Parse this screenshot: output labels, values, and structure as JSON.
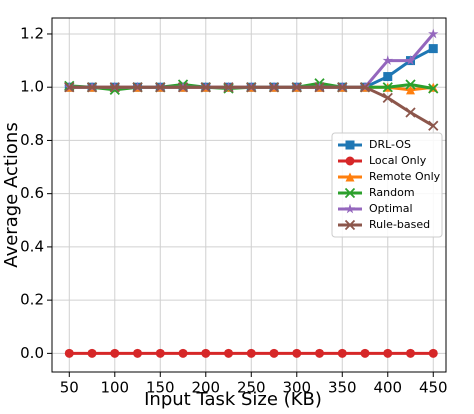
{
  "chart_data": {
    "type": "line",
    "xlabel": "Input Task Size (KB)",
    "ylabel": "Average Actions",
    "x": [
      50,
      75,
      100,
      125,
      150,
      175,
      200,
      225,
      250,
      275,
      300,
      325,
      350,
      375,
      400,
      425,
      450
    ],
    "series": [
      {
        "name": "DRL-OS",
        "color": "#1f77b4",
        "marker": "square",
        "values": [
          1.0,
          1.0,
          1.0,
          1.0,
          1.0,
          1.0,
          1.0,
          1.0,
          1.0,
          1.0,
          1.0,
          1.0,
          1.0,
          1.0,
          1.04,
          1.1,
          1.145
        ]
      },
      {
        "name": "Local Only",
        "color": "#d62728",
        "marker": "circle",
        "values": [
          0,
          0,
          0,
          0,
          0,
          0,
          0,
          0,
          0,
          0,
          0,
          0,
          0,
          0,
          0,
          0,
          0
        ]
      },
      {
        "name": "Remote Only",
        "color": "#ff7f0e",
        "marker": "triangle",
        "values": [
          1.0,
          1.0,
          1.0,
          1.0,
          1.0,
          1.0,
          1.0,
          1.0,
          1.0,
          1.0,
          1.0,
          1.0,
          1.0,
          1.0,
          1.0,
          0.99,
          1.0
        ]
      },
      {
        "name": "Random",
        "color": "#2ca02c",
        "marker": "x",
        "values": [
          1.005,
          1.0,
          0.99,
          1.0,
          1.0,
          1.01,
          1.0,
          0.995,
          1.0,
          1.0,
          1.0,
          1.015,
          1.0,
          1.0,
          1.0,
          1.01,
          0.995
        ]
      },
      {
        "name": "Optimal",
        "color": "#9467bd",
        "marker": "star",
        "values": [
          1.0,
          1.0,
          1.0,
          1.0,
          1.0,
          1.0,
          1.0,
          1.0,
          1.0,
          1.0,
          1.0,
          1.0,
          1.0,
          1.0,
          1.1,
          1.1,
          1.2
        ]
      },
      {
        "name": "Rule-based",
        "color": "#8c564b",
        "marker": "x",
        "values": [
          1.0,
          1.0,
          1.0,
          1.0,
          1.0,
          1.0,
          1.0,
          1.0,
          1.0,
          1.0,
          1.0,
          1.0,
          1.0,
          1.0,
          0.96,
          0.905,
          0.855
        ]
      }
    ],
    "xlim": [
      31,
      464
    ],
    "ylim": [
      -0.07,
      1.26
    ],
    "xticks": [
      50,
      100,
      150,
      200,
      250,
      300,
      350,
      400,
      450
    ],
    "yticks": [
      {
        "value": 0,
        "label": "0.0"
      },
      0.2,
      0.4,
      0.6,
      0.8,
      {
        "value": 1,
        "label": "1.0"
      },
      1.2
    ],
    "grid": true,
    "legend": "center right"
  }
}
